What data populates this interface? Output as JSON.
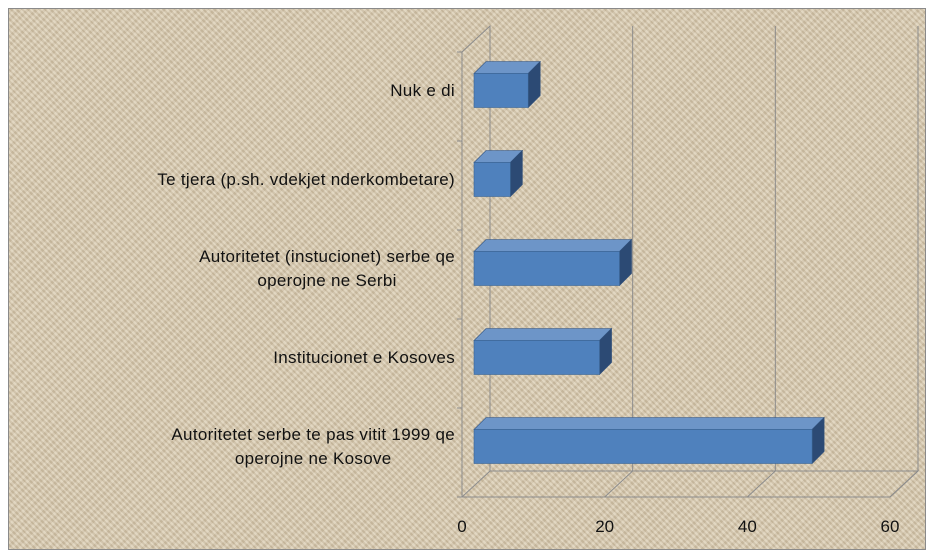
{
  "chart_data": {
    "type": "bar",
    "orientation": "horizontal",
    "categories": [
      "Nuk e di",
      "Te tjera (p.sh. vdekjet nderkombetare)",
      "Autoritetet (instucionet) serbe qe\noperojne ne Serbi",
      "Institucionet e Kosoves",
      "Autoritetet serbe te pas vitit 1999 qe\noperojne ne Kosove"
    ],
    "values": [
      7.6,
      5.1,
      20.4,
      17.6,
      47.4
    ],
    "color": "#4f81bd",
    "xlim": [
      0,
      60
    ],
    "xticks": [
      0,
      20,
      40,
      60
    ],
    "grid": true
  }
}
